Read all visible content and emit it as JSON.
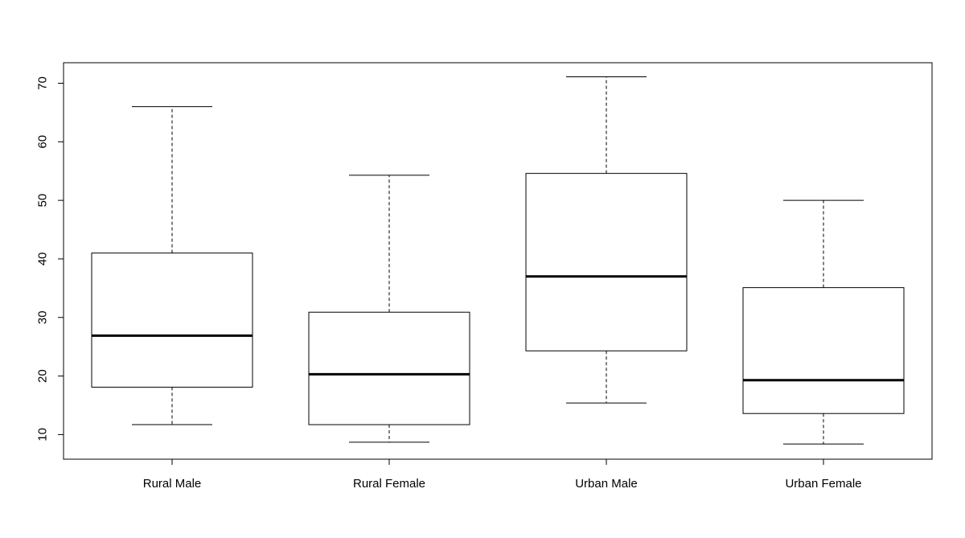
{
  "chart_data": {
    "type": "boxplot",
    "title": "",
    "xlabel": "",
    "ylabel": "",
    "ylim": [
      5.8,
      73.5
    ],
    "y_ticks": [
      10,
      20,
      30,
      40,
      50,
      60,
      70
    ],
    "y_tick_labels": [
      "10",
      "20",
      "30",
      "40",
      "50",
      "60",
      "70"
    ],
    "grid": false,
    "legend": "none",
    "categories": [
      "Rural Male",
      "Rural Female",
      "Urban Male",
      "Urban Female"
    ],
    "boxes": [
      {
        "category": "Rural Male",
        "min": 11.7,
        "q1": 18.1,
        "median": 26.9,
        "q3": 41.0,
        "max": 66.0
      },
      {
        "category": "Rural Female",
        "min": 8.7,
        "q1": 11.7,
        "median": 20.3,
        "q3": 30.9,
        "max": 54.3
      },
      {
        "category": "Urban Male",
        "min": 15.4,
        "q1": 24.3,
        "median": 37.0,
        "q3": 54.6,
        "max": 71.1
      },
      {
        "category": "Urban Female",
        "min": 8.4,
        "q1": 13.6,
        "median": 19.3,
        "q3": 35.1,
        "max": 50.0
      }
    ]
  }
}
